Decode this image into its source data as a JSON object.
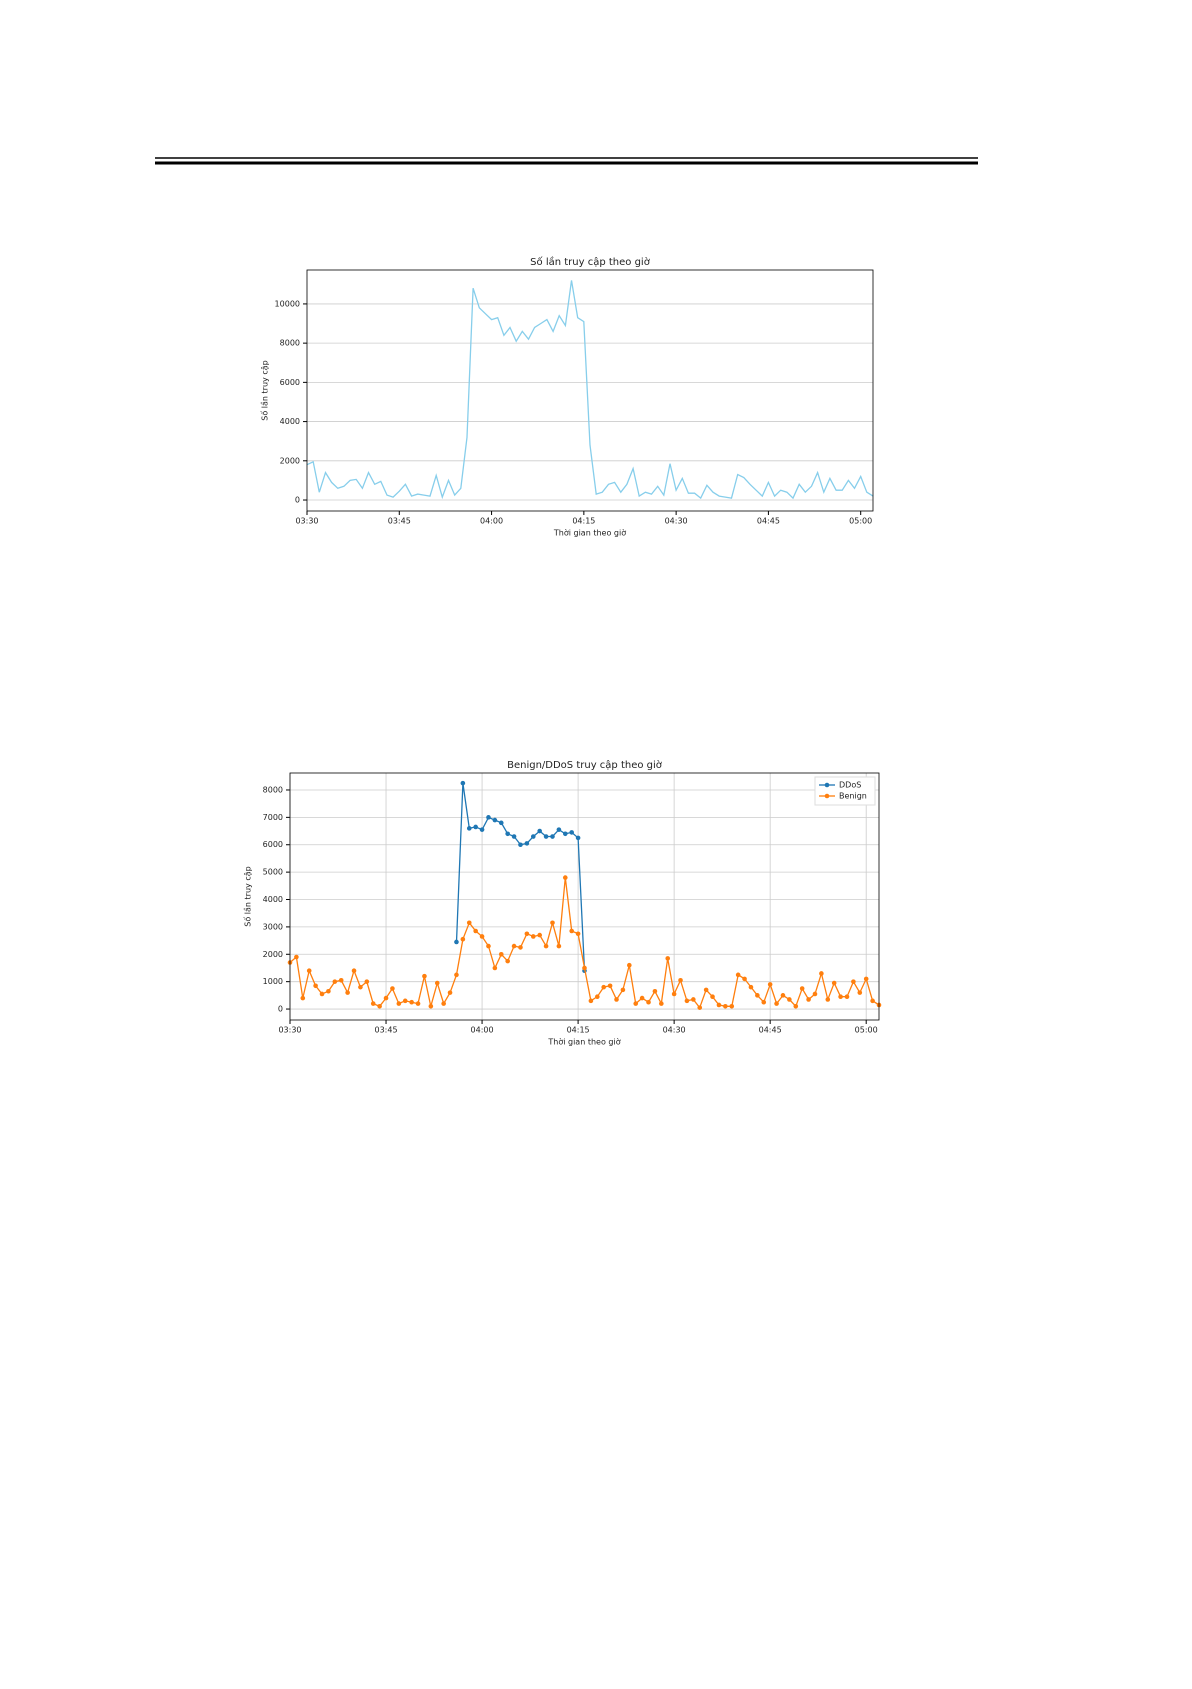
{
  "chart_data": [
    {
      "type": "line",
      "title": "Số lần truy cập theo giờ",
      "xlabel": "Thời gian theo giờ",
      "ylabel": "Số lần truy cập",
      "x": [
        "03:30",
        "03:31",
        "03:32",
        "03:33",
        "03:34",
        "03:35",
        "03:36",
        "03:37",
        "03:38",
        "03:39",
        "03:40",
        "03:41",
        "03:42",
        "03:43",
        "03:44",
        "03:45",
        "03:46",
        "03:47",
        "03:48",
        "03:49",
        "03:50",
        "03:51",
        "03:52",
        "03:53",
        "03:54",
        "03:55",
        "03:56",
        "03:57",
        "03:58",
        "03:59",
        "04:00",
        "04:01",
        "04:02",
        "04:03",
        "04:04",
        "04:05",
        "04:06",
        "04:07",
        "04:08",
        "04:09",
        "04:10",
        "04:11",
        "04:12",
        "04:13",
        "04:14",
        "04:15",
        "04:16",
        "04:17",
        "04:18",
        "04:19",
        "04:20",
        "04:21",
        "04:22",
        "04:23",
        "04:24",
        "04:25",
        "04:26",
        "04:27",
        "04:28",
        "04:29",
        "04:30",
        "04:31",
        "04:32",
        "04:33",
        "04:34",
        "04:35",
        "04:36",
        "04:37",
        "04:38",
        "04:39",
        "04:40",
        "04:41",
        "04:42",
        "04:43",
        "04:44",
        "04:45",
        "04:46",
        "04:47",
        "04:48",
        "04:49",
        "04:50",
        "04:51",
        "04:52",
        "04:53",
        "04:54",
        "04:55",
        "04:56",
        "04:57",
        "04:58",
        "04:59",
        "05:00",
        "05:01",
        "05:02"
      ],
      "values": [
        1800,
        1950,
        400,
        1400,
        900,
        600,
        700,
        1000,
        1050,
        600,
        1400,
        800,
        950,
        250,
        150,
        450,
        800,
        200,
        300,
        250,
        200,
        1250,
        150,
        1000,
        250,
        600,
        3200,
        10800,
        9800,
        9500,
        9200,
        9300,
        8400,
        8800,
        8100,
        8600,
        8200,
        8800,
        9000,
        9200,
        8600,
        9400,
        8900,
        11200,
        9300,
        9100,
        2800,
        300,
        400,
        800,
        900,
        400,
        800,
        1600,
        200,
        400,
        300,
        700,
        250,
        1850,
        500,
        1100,
        350,
        350,
        100,
        750,
        400,
        200,
        150,
        100,
        1300,
        1150,
        800,
        500,
        200,
        900,
        200,
        500,
        400,
        100,
        800,
        400,
        700,
        1400,
        400,
        1100,
        500,
        500,
        1000,
        600,
        1200,
        400,
        200
      ],
      "color": "#87ceeb",
      "xlim": [
        "03:30",
        "05:02"
      ],
      "xticks": [
        "03:30",
        "03:45",
        "04:00",
        "04:15",
        "04:30",
        "04:45",
        "05:00"
      ],
      "ylim": [
        -560,
        11730
      ],
      "yticks": [
        0,
        2000,
        4000,
        6000,
        8000,
        10000
      ],
      "grid": "y"
    },
    {
      "type": "line",
      "title": "Benign/DDoS truy cập theo giờ",
      "xlabel": "Thời gian theo giờ",
      "ylabel": "Số lần truy cập",
      "x": [
        "03:30",
        "03:31",
        "03:32",
        "03:33",
        "03:34",
        "03:35",
        "03:36",
        "03:37",
        "03:38",
        "03:39",
        "03:40",
        "03:41",
        "03:42",
        "03:43",
        "03:44",
        "03:45",
        "03:46",
        "03:47",
        "03:48",
        "03:49",
        "03:50",
        "03:51",
        "03:52",
        "03:53",
        "03:54",
        "03:55",
        "03:56",
        "03:57",
        "03:58",
        "03:59",
        "04:00",
        "04:01",
        "04:02",
        "04:03",
        "04:04",
        "04:05",
        "04:06",
        "04:07",
        "04:08",
        "04:09",
        "04:10",
        "04:11",
        "04:12",
        "04:13",
        "04:14",
        "04:15",
        "04:16",
        "04:17",
        "04:18",
        "04:19",
        "04:20",
        "04:21",
        "04:22",
        "04:23",
        "04:24",
        "04:25",
        "04:26",
        "04:27",
        "04:28",
        "04:29",
        "04:30",
        "04:31",
        "04:32",
        "04:33",
        "04:34",
        "04:35",
        "04:36",
        "04:37",
        "04:38",
        "04:39",
        "04:40",
        "04:41",
        "04:42",
        "04:43",
        "04:44",
        "04:45",
        "04:46",
        "04:47",
        "04:48",
        "04:49",
        "04:50",
        "04:51",
        "04:52",
        "04:53",
        "04:54",
        "04:55",
        "04:56",
        "04:57",
        "04:58",
        "04:59",
        "05:00",
        "05:01",
        "05:02"
      ],
      "series": [
        {
          "name": "DDoS",
          "color": "#1f77b4",
          "values": [
            null,
            null,
            null,
            null,
            null,
            null,
            null,
            null,
            null,
            null,
            null,
            null,
            null,
            null,
            null,
            null,
            null,
            null,
            null,
            null,
            null,
            null,
            null,
            null,
            null,
            null,
            2450,
            8250,
            6600,
            6650,
            6550,
            7000,
            6900,
            6800,
            6400,
            6300,
            6000,
            6050,
            6300,
            6500,
            6300,
            6300,
            6550,
            6400,
            6450,
            6250,
            1400,
            null,
            null,
            null,
            null,
            null,
            null,
            null,
            null,
            null,
            null,
            null,
            null,
            null,
            null,
            null,
            null,
            null,
            null,
            null,
            null,
            null,
            null,
            null,
            null,
            null,
            null,
            null,
            null,
            null,
            null,
            null,
            null,
            null,
            null,
            null,
            null,
            null,
            null,
            null,
            null,
            null,
            null,
            null,
            null,
            null,
            null
          ]
        },
        {
          "name": "Benign",
          "color": "#ff7f0e",
          "values": [
            1700,
            1900,
            400,
            1400,
            850,
            550,
            650,
            1000,
            1050,
            600,
            1400,
            800,
            1000,
            200,
            100,
            400,
            750,
            200,
            300,
            250,
            200,
            1200,
            100,
            950,
            200,
            600,
            1250,
            2550,
            3150,
            2850,
            2650,
            2300,
            1500,
            2000,
            1750,
            2300,
            2250,
            2750,
            2650,
            2700,
            2300,
            3150,
            2300,
            4800,
            2850,
            2750,
            1500,
            300,
            450,
            800,
            850,
            350,
            700,
            1600,
            200,
            400,
            250,
            650,
            200,
            1850,
            550,
            1050,
            300,
            350,
            50,
            700,
            450,
            150,
            100,
            100,
            1250,
            1100,
            800,
            500,
            250,
            900,
            200,
            500,
            350,
            100,
            750,
            350,
            550,
            1300,
            350,
            950,
            450,
            450,
            1000,
            600,
            1100,
            300,
            150
          ]
        }
      ],
      "markers": true,
      "legend": "upper right",
      "xlim": [
        "03:30",
        "05:02"
      ],
      "xticks": [
        "03:30",
        "03:45",
        "04:00",
        "04:15",
        "04:30",
        "04:45",
        "05:00"
      ],
      "ylim": [
        -400,
        8620
      ],
      "yticks": [
        0,
        1000,
        2000,
        3000,
        4000,
        5000,
        6000,
        7000,
        8000
      ],
      "grid": "both"
    }
  ]
}
